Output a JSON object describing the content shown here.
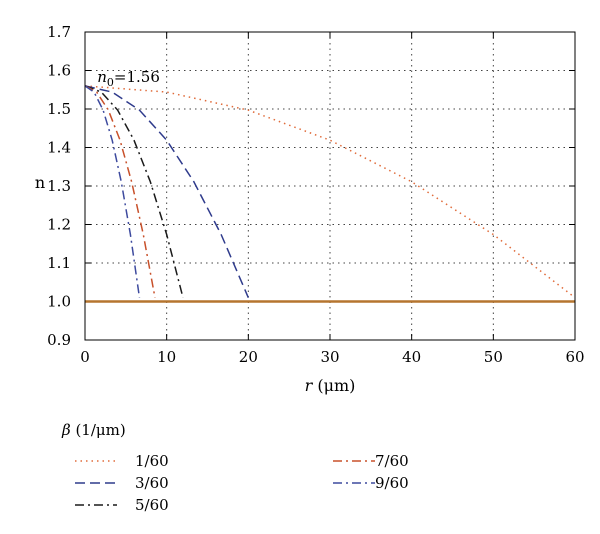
{
  "chart_data": {
    "type": "line",
    "xlabel": {
      "var": "r",
      "unit": "(μm)"
    },
    "ylabel": "n",
    "xlim": [
      0,
      60
    ],
    "ylim": [
      0.9,
      1.7
    ],
    "xticks": [
      "0",
      "10",
      "20",
      "30",
      "40",
      "50",
      "60"
    ],
    "yticks": [
      "0.9",
      "1.0",
      "1.1",
      "1.2",
      "1.3",
      "1.4",
      "1.5",
      "1.6",
      "1.7"
    ],
    "grid": "dotted",
    "annotation": {
      "var": "n",
      "sub": "0",
      "rest": "=1.56",
      "x": 1.5,
      "y": 1.57
    },
    "baseline": {
      "y": 1.0,
      "x": [
        0,
        60
      ],
      "color": "#b5752f"
    },
    "legend": {
      "title": {
        "var": "β",
        "unit": "(1/μm)"
      },
      "placement": "bottom-left"
    },
    "series": [
      {
        "name": "1/60",
        "color": "#e06b3a",
        "dash": "dotted",
        "x": [
          0,
          10,
          20,
          30,
          40,
          50,
          60
        ],
        "y": [
          1.56,
          1.544,
          1.497,
          1.419,
          1.311,
          1.174,
          1.01
        ]
      },
      {
        "name": "3/60",
        "color": "#2f3b8c",
        "dash": "dashed",
        "x": [
          0,
          3.33,
          6.67,
          10,
          13.33,
          16.67,
          20
        ],
        "y": [
          1.56,
          1.544,
          1.497,
          1.419,
          1.311,
          1.174,
          1.01
        ]
      },
      {
        "name": "5/60",
        "color": "#1a1a1a",
        "dash": "dashdot",
        "x": [
          0,
          2,
          4,
          6,
          8,
          10,
          12
        ],
        "y": [
          1.56,
          1.544,
          1.497,
          1.419,
          1.311,
          1.174,
          1.01
        ]
      },
      {
        "name": "7/60",
        "color": "#c8502a",
        "dash": "dashdot",
        "x": [
          0,
          1.43,
          2.86,
          4.29,
          5.71,
          7.14,
          8.57
        ],
        "y": [
          1.56,
          1.544,
          1.497,
          1.419,
          1.311,
          1.174,
          1.01
        ]
      },
      {
        "name": "9/60",
        "color": "#3d4a9e",
        "dash": "dashdot",
        "x": [
          0,
          1.11,
          2.22,
          3.33,
          4.44,
          5.56,
          6.67
        ],
        "y": [
          1.56,
          1.544,
          1.497,
          1.419,
          1.311,
          1.174,
          1.01
        ]
      }
    ]
  }
}
